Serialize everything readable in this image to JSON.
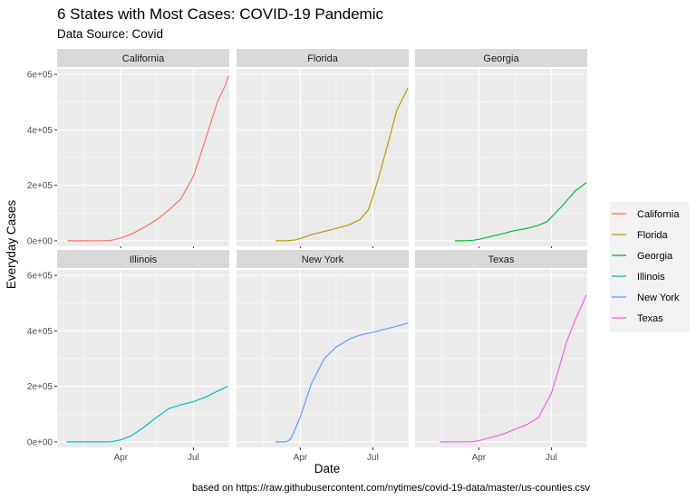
{
  "chart_data": {
    "type": "line",
    "title": "6 States with Most Cases: COVID-19 Pandemic",
    "subtitle": "Data Source: Covid",
    "xlabel": "Date",
    "ylabel": "Everyday Cases",
    "caption": "based on https://raw.githubusercontent.com/nytimes/covid-19-data/master/us-counties.csv",
    "x_domain": [
      "2020-01-12",
      "2020-08-15"
    ],
    "x_ticks": [
      {
        "date": "2020-04-01",
        "label": "Apr"
      },
      {
        "date": "2020-07-01",
        "label": "Jul"
      }
    ],
    "x_minor": [
      "2020-02-15",
      "2020-05-16",
      "2020-08-15"
    ],
    "ylim": [
      -20000,
      620000
    ],
    "y_ticks": [
      {
        "value": 0,
        "label": "0e+00"
      },
      {
        "value": 200000,
        "label": "2e+05"
      },
      {
        "value": 400000,
        "label": "4e+05"
      },
      {
        "value": 600000,
        "label": "6e+05"
      }
    ],
    "facet_layout": {
      "rows": 2,
      "cols": 3
    },
    "legend_position": "right",
    "series": [
      {
        "name": "California",
        "color": "#F8766D",
        "points": [
          [
            "2020-01-25",
            0
          ],
          [
            "2020-02-15",
            50
          ],
          [
            "2020-03-10",
            200
          ],
          [
            "2020-03-20",
            1500
          ],
          [
            "2020-04-01",
            10000
          ],
          [
            "2020-04-15",
            25000
          ],
          [
            "2020-05-01",
            50000
          ],
          [
            "2020-05-15",
            74000
          ],
          [
            "2020-06-01",
            113000
          ],
          [
            "2020-06-15",
            150000
          ],
          [
            "2020-07-01",
            232000
          ],
          [
            "2020-07-10",
            310000
          ],
          [
            "2020-07-20",
            400000
          ],
          [
            "2020-07-31",
            500000
          ],
          [
            "2020-08-10",
            560000
          ],
          [
            "2020-08-14",
            595000
          ]
        ]
      },
      {
        "name": "Florida",
        "color": "#B79F00",
        "points": [
          [
            "2020-03-01",
            0
          ],
          [
            "2020-03-15",
            100
          ],
          [
            "2020-03-25",
            2500
          ],
          [
            "2020-04-01",
            8000
          ],
          [
            "2020-04-15",
            22000
          ],
          [
            "2020-05-01",
            34000
          ],
          [
            "2020-05-15",
            44000
          ],
          [
            "2020-06-01",
            57000
          ],
          [
            "2020-06-15",
            77000
          ],
          [
            "2020-06-25",
            110000
          ],
          [
            "2020-07-01",
            158000
          ],
          [
            "2020-07-10",
            245000
          ],
          [
            "2020-07-20",
            350000
          ],
          [
            "2020-07-31",
            470000
          ],
          [
            "2020-08-14",
            550000
          ]
        ]
      },
      {
        "name": "Georgia",
        "color": "#00BA38",
        "points": [
          [
            "2020-03-02",
            0
          ],
          [
            "2020-03-15",
            100
          ],
          [
            "2020-03-25",
            2000
          ],
          [
            "2020-04-01",
            5000
          ],
          [
            "2020-04-15",
            15000
          ],
          [
            "2020-05-01",
            26000
          ],
          [
            "2020-05-15",
            36000
          ],
          [
            "2020-06-01",
            45000
          ],
          [
            "2020-06-15",
            56000
          ],
          [
            "2020-06-25",
            68000
          ],
          [
            "2020-07-01",
            85000
          ],
          [
            "2020-07-15",
            127000
          ],
          [
            "2020-07-31",
            180000
          ],
          [
            "2020-08-14",
            210000
          ]
        ]
      },
      {
        "name": "Illinois",
        "color": "#00BFC4",
        "points": [
          [
            "2020-01-24",
            0
          ],
          [
            "2020-02-15",
            10
          ],
          [
            "2020-03-10",
            50
          ],
          [
            "2020-03-20",
            700
          ],
          [
            "2020-04-01",
            7000
          ],
          [
            "2020-04-15",
            23000
          ],
          [
            "2020-05-01",
            55000
          ],
          [
            "2020-05-15",
            87000
          ],
          [
            "2020-06-01",
            121000
          ],
          [
            "2020-06-15",
            133000
          ],
          [
            "2020-07-01",
            145000
          ],
          [
            "2020-07-15",
            160000
          ],
          [
            "2020-07-31",
            182000
          ],
          [
            "2020-08-13",
            200000
          ]
        ]
      },
      {
        "name": "New York",
        "color": "#619CFF",
        "points": [
          [
            "2020-03-01",
            0
          ],
          [
            "2020-03-10",
            200
          ],
          [
            "2020-03-15",
            1000
          ],
          [
            "2020-03-20",
            10000
          ],
          [
            "2020-04-01",
            90000
          ],
          [
            "2020-04-15",
            210000
          ],
          [
            "2020-05-01",
            300000
          ],
          [
            "2020-05-15",
            340000
          ],
          [
            "2020-06-01",
            370000
          ],
          [
            "2020-06-15",
            385000
          ],
          [
            "2020-07-01",
            395000
          ],
          [
            "2020-07-15",
            405000
          ],
          [
            "2020-07-31",
            417000
          ],
          [
            "2020-08-14",
            428000
          ]
        ]
      },
      {
        "name": "Texas",
        "color": "#F564E3",
        "points": [
          [
            "2020-02-12",
            0
          ],
          [
            "2020-03-10",
            100
          ],
          [
            "2020-03-25",
            1000
          ],
          [
            "2020-04-01",
            4000
          ],
          [
            "2020-04-15",
            15000
          ],
          [
            "2020-05-01",
            27000
          ],
          [
            "2020-05-15",
            44000
          ],
          [
            "2020-06-01",
            63000
          ],
          [
            "2020-06-15",
            88000
          ],
          [
            "2020-07-01",
            175000
          ],
          [
            "2020-07-10",
            260000
          ],
          [
            "2020-07-20",
            360000
          ],
          [
            "2020-07-31",
            440000
          ],
          [
            "2020-08-14",
            530000
          ]
        ]
      }
    ]
  }
}
